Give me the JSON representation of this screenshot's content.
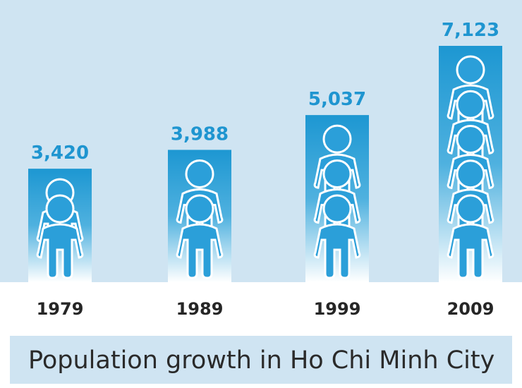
{
  "chart_data": {
    "type": "bar",
    "title": "Population growth in Ho Chi Minh City",
    "categories": [
      "1979",
      "1989",
      "1999",
      "2009"
    ],
    "values": [
      3420,
      3988,
      5037,
      7123
    ],
    "value_labels": [
      "3,420",
      "3,988",
      "5,037",
      "7,123"
    ],
    "figures_per_bar": [
      2,
      2,
      3,
      5
    ],
    "xlabel": "",
    "ylabel": "",
    "ylim": [
      0,
      8000
    ],
    "grid": false,
    "legend": "none"
  },
  "colors": {
    "panel_background": "#cfe4f2",
    "bar_top": "#1d97d2",
    "bar_bottom": "#ffffff",
    "figure_fill": "#2b9fd9",
    "figure_outline": "#ffffff",
    "value_text": "#1f95d0",
    "year_text": "#262626",
    "title_panel": "#cfe4f2",
    "title_text": "#2a2a2a"
  }
}
